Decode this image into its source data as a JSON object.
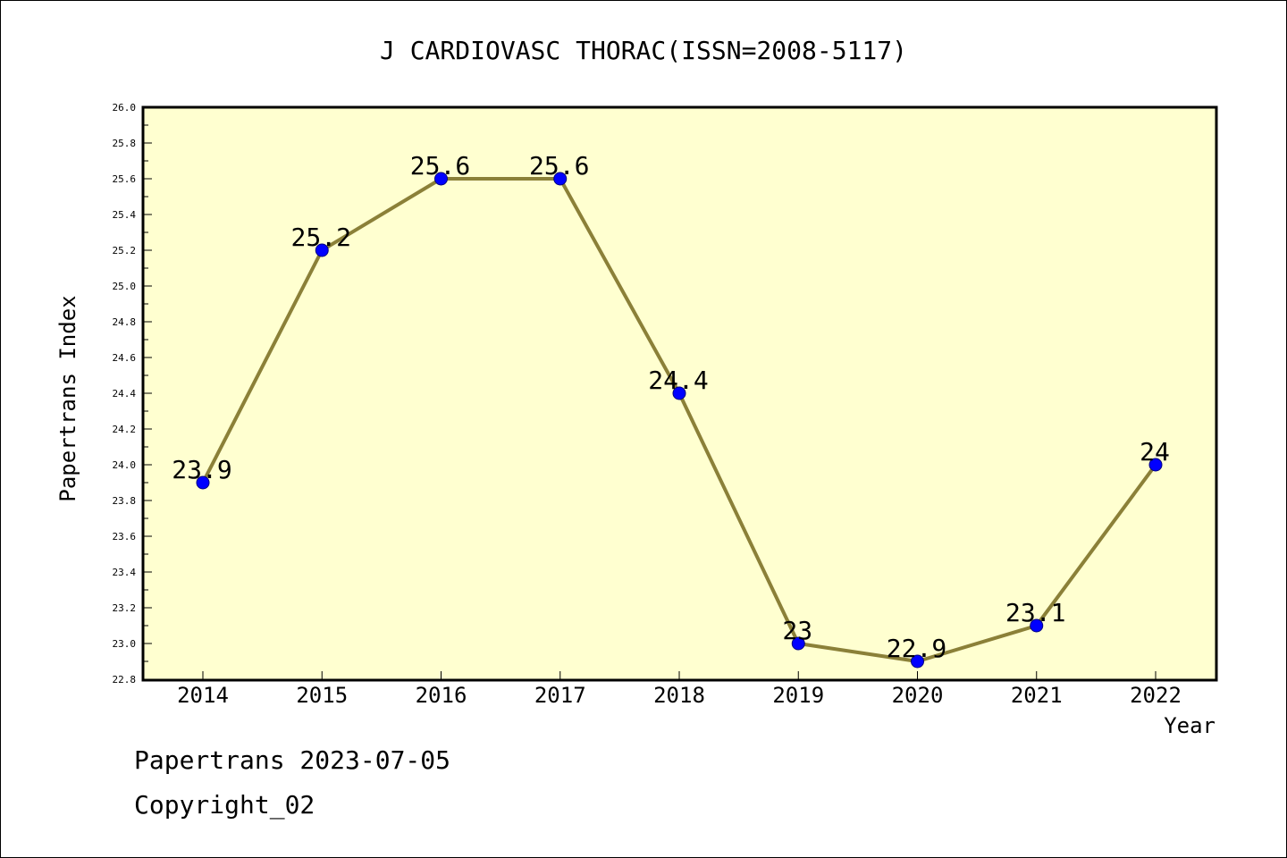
{
  "chart_data": {
    "type": "line",
    "title": "J CARDIOVASC THORAC(ISSN=2008-5117)",
    "xlabel": "Year",
    "ylabel": "Papertrans Index",
    "categories": [
      "2014",
      "2015",
      "2016",
      "2017",
      "2018",
      "2019",
      "2020",
      "2021",
      "2022"
    ],
    "values": [
      23.9,
      25.2,
      25.6,
      25.6,
      24.4,
      23.0,
      22.9,
      23.1,
      24.0
    ],
    "data_labels": [
      "23.9",
      "25.2",
      "25.6",
      "25.6",
      "24.4",
      "23",
      "22.9",
      "23.1",
      "24"
    ],
    "ylim": [
      22.8,
      26.0
    ],
    "y_ticks": [
      "22.8",
      "23.0",
      "23.2",
      "23.4",
      "23.6",
      "23.8",
      "24.0",
      "24.2",
      "24.4",
      "24.6",
      "24.8",
      "25.0",
      "25.2",
      "25.4",
      "25.6",
      "25.8",
      "26.0"
    ],
    "grid": false,
    "colors": {
      "plot_background": "#ffffd0",
      "line": "#8b8038",
      "marker": "#0000ff",
      "marker_edge": "#000080"
    }
  },
  "footer": {
    "line1": "Papertrans 2023-07-05",
    "line2": "Copyright_02"
  }
}
